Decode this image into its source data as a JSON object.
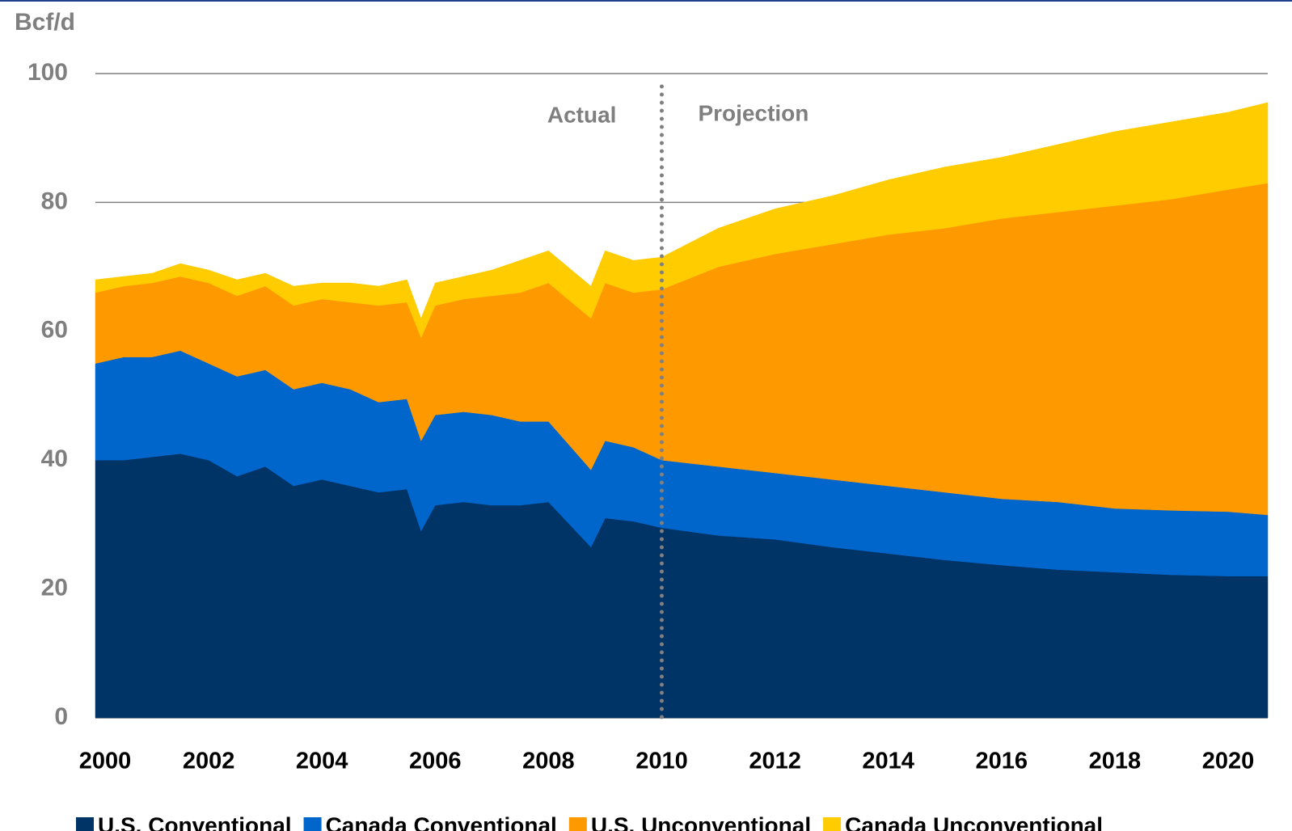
{
  "chart_data": {
    "type": "stacked-area",
    "y_axis_label": "Bcf/d",
    "annotations": {
      "left": "Actual",
      "right": "Projection",
      "divider_x": 2010
    },
    "x": [
      2000,
      2000.5,
      2001,
      2001.5,
      2002,
      2002.5,
      2003,
      2003.5,
      2004,
      2004.5,
      2005,
      2005.5,
      2005.75,
      2006,
      2006.5,
      2007,
      2007.5,
      2008,
      2008.75,
      2009,
      2009.5,
      2010,
      2011,
      2012,
      2013,
      2014,
      2015,
      2016,
      2017,
      2018,
      2019,
      2020,
      2020.7
    ],
    "series": [
      {
        "name": "U.S. Conventional",
        "color": "#003366",
        "values": [
          40,
          40,
          40.5,
          41,
          40,
          37.5,
          39,
          36,
          37,
          36,
          35,
          35.5,
          29,
          33,
          33.5,
          33,
          33,
          33.5,
          26.5,
          31,
          30.5,
          29.5,
          28.3,
          27.7,
          26.5,
          25.5,
          24.5,
          23.7,
          23,
          22.6,
          22.2,
          22,
          22
        ]
      },
      {
        "name": "Canada Conventional",
        "color": "#0066cc",
        "values": [
          15,
          16,
          15.5,
          16,
          15,
          15.5,
          15,
          15,
          15,
          15,
          14,
          14,
          14,
          14,
          14,
          14,
          13,
          12.5,
          12,
          12,
          11.5,
          10.5,
          10.7,
          10.3,
          10.5,
          10.5,
          10.5,
          10.3,
          10.5,
          9.9,
          10,
          10,
          9.5
        ]
      },
      {
        "name": "U.S. Unconventional",
        "color": "#ff9900",
        "values": [
          11,
          11,
          11.5,
          11.5,
          12.5,
          12.5,
          13,
          13,
          13,
          13.5,
          15,
          15,
          16,
          17,
          17.5,
          18.5,
          20,
          21.5,
          23.5,
          24.5,
          24,
          26.5,
          31,
          34,
          36.5,
          39,
          41,
          43.5,
          45,
          47,
          48.3,
          50,
          51.5
        ]
      },
      {
        "name": "Canada Unconventional",
        "color": "#ffcc00",
        "values": [
          2,
          1.5,
          1.5,
          2,
          2,
          2.5,
          2,
          3,
          2.5,
          3,
          3,
          3.5,
          3,
          3.5,
          3.5,
          4,
          5,
          5,
          5,
          5,
          5,
          5,
          6,
          7,
          7.5,
          8.5,
          9.5,
          9.5,
          10.5,
          11.5,
          12,
          12,
          12.5
        ]
      }
    ],
    "xlim": [
      2000,
      2020.7
    ],
    "xticks": [
      2000,
      2002,
      2004,
      2006,
      2008,
      2010,
      2012,
      2014,
      2016,
      2018,
      2020
    ],
    "ylim": [
      0,
      100
    ],
    "yticks": [
      0,
      20,
      40,
      60,
      80,
      100
    ],
    "grid": true,
    "legend": "bottom"
  }
}
